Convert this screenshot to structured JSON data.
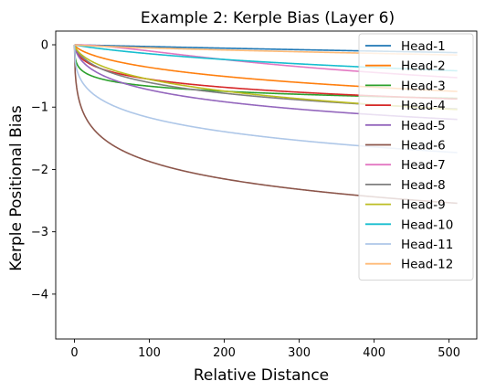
{
  "chart_data": {
    "type": "line",
    "title": "Example 2: Kerple Bias (Layer 6)",
    "xlabel": "Relative Distance",
    "ylabel": "Kerple Positional Bias",
    "xlim": [
      -25,
      537
    ],
    "ylim": [
      -4.72,
      0.22
    ],
    "xticks": [
      0,
      100,
      200,
      300,
      400,
      500
    ],
    "yticks": [
      0,
      -1,
      -2,
      -3,
      -4
    ],
    "xtick_labels": [
      "0",
      "100",
      "200",
      "300",
      "400",
      "500"
    ],
    "ytick_labels": [
      "0",
      "−1",
      "−2",
      "−3",
      "−4"
    ],
    "grid": false,
    "legend_position": "top-right",
    "series_model": "y = -a * ln(1 + b * x^c)",
    "series": [
      {
        "name": "Head-1",
        "color": "#1f77b4",
        "a": 0.66,
        "b": 0.21,
        "c": 0.95
      },
      {
        "name": "Head-2",
        "color": "#ff7f0e",
        "a": 0.54,
        "b": 3.0,
        "c": 0.7
      },
      {
        "name": "Head-3",
        "color": "#2ca02c",
        "a": 0.25,
        "b": 30,
        "c": 0.5
      },
      {
        "name": "Head-4",
        "color": "#d62728",
        "a": 0.37,
        "b": 9.5,
        "c": 0.62
      },
      {
        "name": "Head-5",
        "color": "#9467bd",
        "a": 0.52,
        "b": 9.0,
        "c": 0.67
      },
      {
        "name": "Head-6",
        "color": "#8c564b",
        "a": 0.8,
        "b": 23,
        "c": 0.55
      },
      {
        "name": "Head-7",
        "color": "#e377c2",
        "a": 0.22,
        "b": 10,
        "c": 1.75
      },
      {
        "name": "Head-8",
        "color": "#7f7f7f",
        "a": 0.38,
        "b": 14,
        "c": 0.78
      },
      {
        "name": "Head-9",
        "color": "#bcbd22",
        "a": 0.61,
        "b": 4.5,
        "c": 0.68
      },
      {
        "name": "Head-10",
        "color": "#17becf",
        "a": 0.38,
        "b": 2.0,
        "c": 0.9
      },
      {
        "name": "Head-11",
        "color": "#aec7e8",
        "a": 1.15,
        "b": 3.5,
        "c": 0.42
      },
      {
        "name": "Head-12",
        "color": "#ffbb78",
        "a": 1.25,
        "b": 0.14,
        "c": 0.75
      }
    ]
  }
}
